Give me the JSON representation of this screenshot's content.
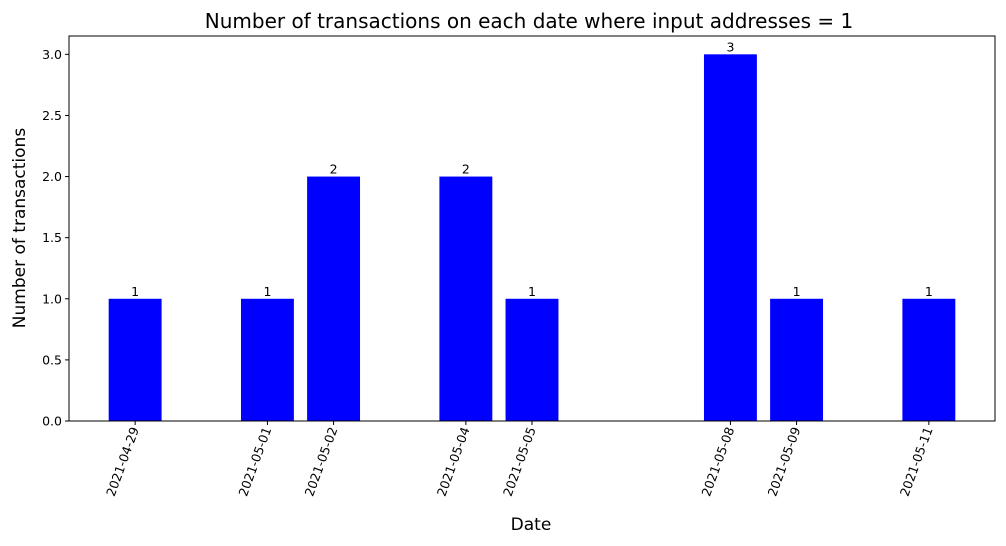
{
  "chart_data": {
    "type": "bar",
    "title": "Number of transactions on each date where input addresses = 1",
    "xlabel": "Date",
    "ylabel": "Number of transactions",
    "x": [
      "2021-04-29",
      "2021-05-01",
      "2021-05-02",
      "2021-05-04",
      "2021-05-05",
      "2021-05-08",
      "2021-05-09",
      "2021-05-11"
    ],
    "values": [
      1,
      1,
      2,
      2,
      1,
      3,
      1,
      1
    ],
    "data_labels": [
      "1",
      "1",
      "2",
      "2",
      "1",
      "3",
      "1",
      "1"
    ],
    "xlim": [
      "2021-04-28",
      "2021-05-12"
    ],
    "ylim": [
      0,
      3.15
    ],
    "yticks": [
      0.0,
      0.5,
      1.0,
      1.5,
      2.0,
      2.5,
      3.0
    ],
    "ytick_labels": [
      "0.0",
      "0.5",
      "1.0",
      "1.5",
      "2.0",
      "2.5",
      "3.0"
    ],
    "xtick_rotation": 70,
    "bar_color": "#0000ff",
    "grid": false,
    "legend": "none"
  }
}
